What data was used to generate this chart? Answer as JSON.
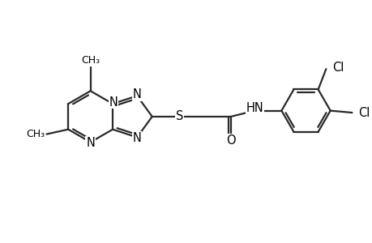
{
  "background_color": "#ffffff",
  "line_color": "#2a2a2a",
  "atom_color": "#000000",
  "line_width": 1.6,
  "font_size": 10.5,
  "figsize": [
    4.6,
    3.0
  ],
  "dpi": 100,
  "xlim": [
    0,
    9.2
  ],
  "ylim": [
    0,
    6.0
  ]
}
